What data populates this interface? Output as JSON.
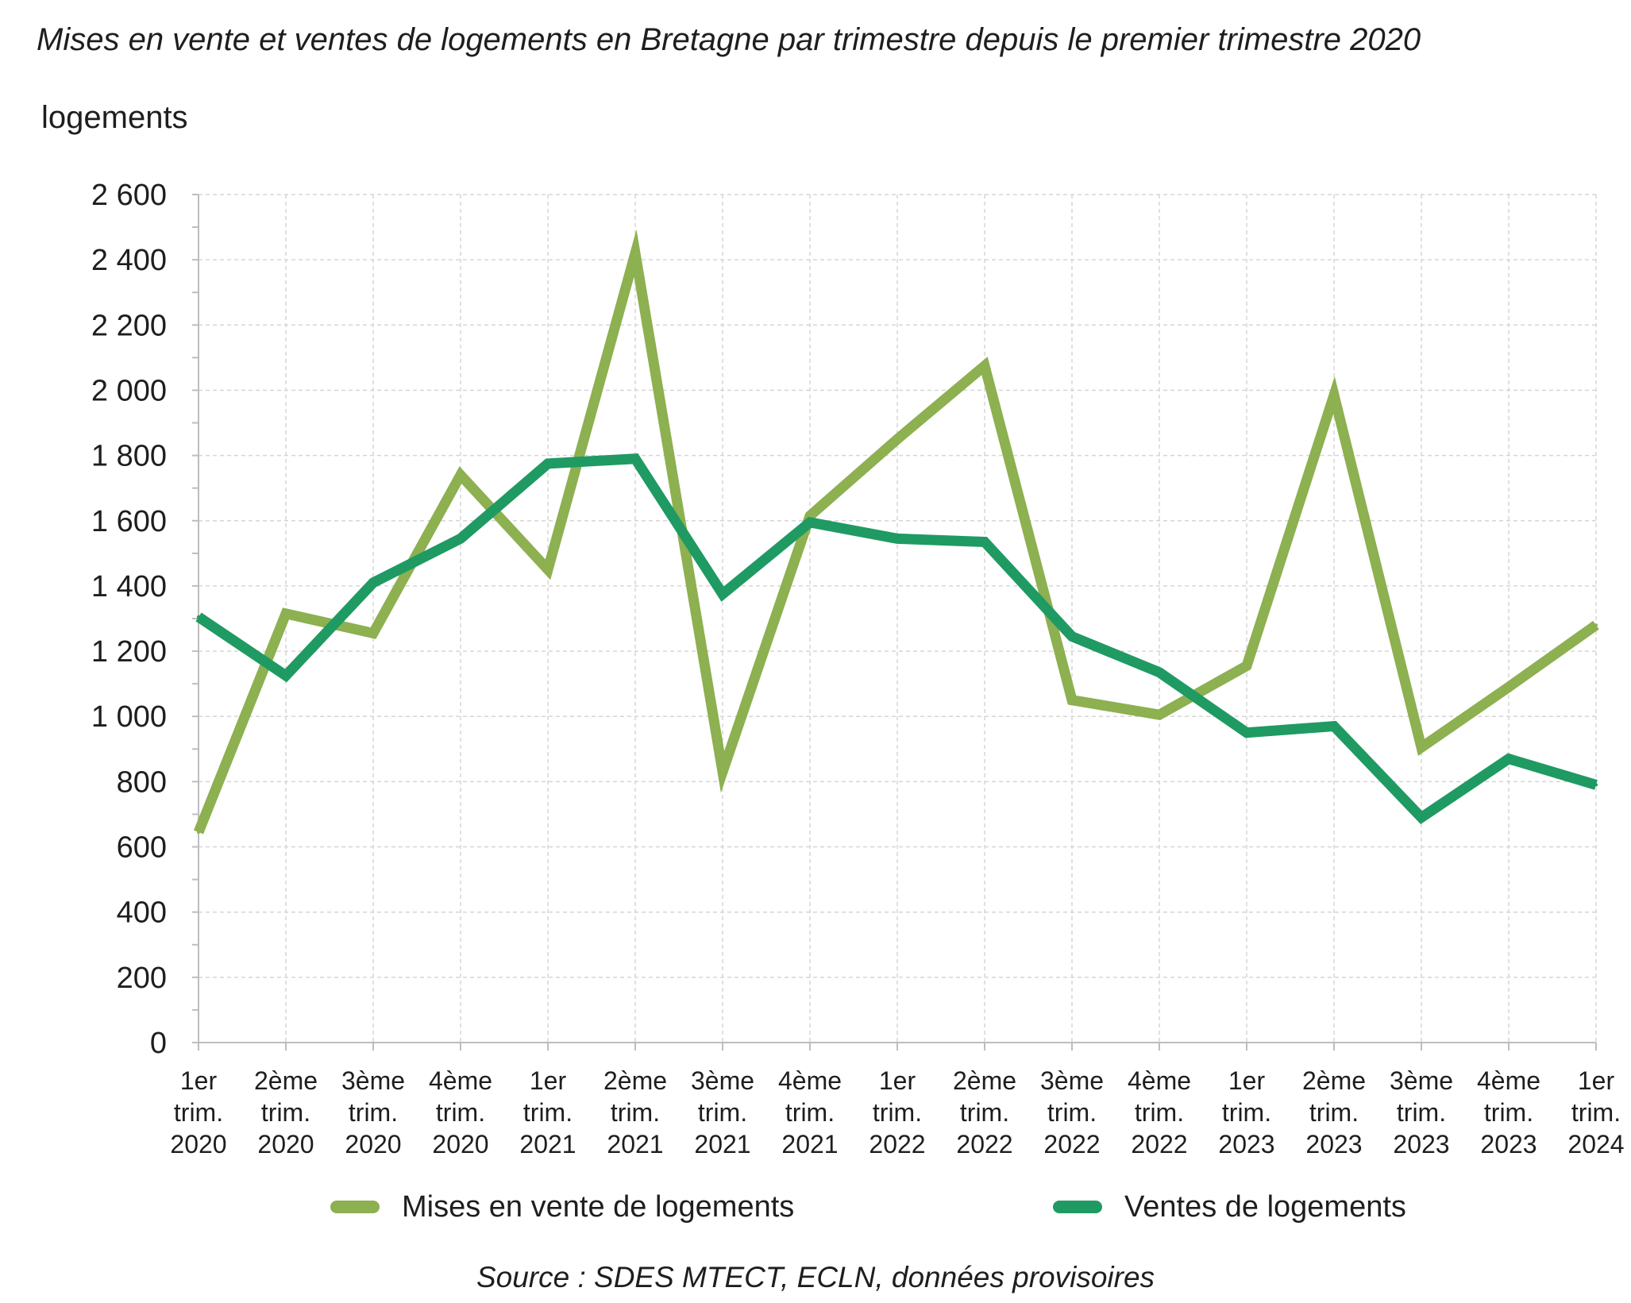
{
  "chart_data": {
    "type": "line",
    "title": "Mises en vente et ventes de logements en Bretagne par trimestre depuis le premier trimestre 2020",
    "ylabel": "logements",
    "xlabel": "",
    "source": "Source : SDES MTECT, ECLN, données provisoires",
    "ylim": [
      0,
      2600
    ],
    "yticks": [
      {
        "value": 0,
        "label": "0"
      },
      {
        "value": 200,
        "label": "200"
      },
      {
        "value": 400,
        "label": "400"
      },
      {
        "value": 600,
        "label": "600"
      },
      {
        "value": 800,
        "label": "800"
      },
      {
        "value": 1000,
        "label": "1 000"
      },
      {
        "value": 1200,
        "label": "1 200"
      },
      {
        "value": 1400,
        "label": "1 400"
      },
      {
        "value": 1600,
        "label": "1 600"
      },
      {
        "value": 1800,
        "label": "1 800"
      },
      {
        "value": 2000,
        "label": "2 000"
      },
      {
        "value": 2200,
        "label": "2 200"
      },
      {
        "value": 2400,
        "label": "2 400"
      },
      {
        "value": 2600,
        "label": "2 600"
      }
    ],
    "categories": [
      [
        "1er",
        "trim.",
        "2020"
      ],
      [
        "2ème",
        "trim.",
        "2020"
      ],
      [
        "3ème",
        "trim.",
        "2020"
      ],
      [
        "4ème",
        "trim.",
        "2020"
      ],
      [
        "1er",
        "trim.",
        "2021"
      ],
      [
        "2ème",
        "trim.",
        "2021"
      ],
      [
        "3ème",
        "trim.",
        "2021"
      ],
      [
        "4ème",
        "trim.",
        "2021"
      ],
      [
        "1er",
        "trim.",
        "2022"
      ],
      [
        "2ème",
        "trim.",
        "2022"
      ],
      [
        "3ème",
        "trim.",
        "2022"
      ],
      [
        "4ème",
        "trim.",
        "2022"
      ],
      [
        "1er",
        "trim.",
        "2023"
      ],
      [
        "2ème",
        "trim.",
        "2023"
      ],
      [
        "3ème",
        "trim.",
        "2023"
      ],
      [
        "4ème",
        "trim.",
        "2023"
      ],
      [
        "1er",
        "trim.",
        "2024"
      ]
    ],
    "series": [
      {
        "name": "Mises en vente de logements",
        "color": "#8db050",
        "values": [
          645,
          1315,
          1255,
          1740,
          1450,
          2420,
          830,
          1615,
          1850,
          2075,
          1050,
          1005,
          1155,
          1985,
          905,
          1090,
          1280
        ]
      },
      {
        "name": "Ventes de logements",
        "color": "#1f9a63",
        "values": [
          1305,
          1125,
          1410,
          1545,
          1775,
          1790,
          1375,
          1595,
          1545,
          1535,
          1245,
          1135,
          950,
          970,
          690,
          870,
          790
        ]
      }
    ],
    "grid": true,
    "legend_position": "bottom"
  }
}
